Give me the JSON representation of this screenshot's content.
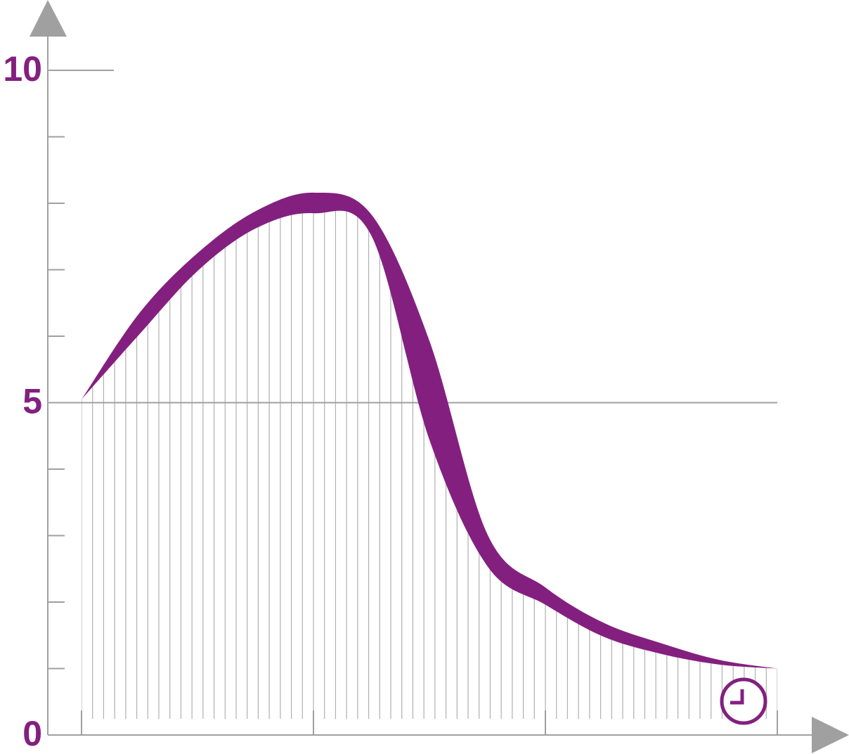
{
  "chart_data": {
    "type": "band",
    "color": "#83207f",
    "x": [
      0,
      0.25,
      0.5,
      0.75,
      1,
      1.25,
      1.5,
      1.75,
      2,
      2.25,
      2.5,
      2.75,
      3
    ],
    "series": [
      {
        "color": "#83207f",
        "values": [
          5.05,
          6.35,
          7.25,
          7.88,
          8.16,
          7.83,
          5.93,
          3.02,
          2.22,
          1.69,
          1.38,
          1.13,
          1.0
        ]
      },
      {
        "color": "#83207f",
        "values": [
          5.05,
          6.03,
          6.98,
          7.62,
          7.85,
          7.51,
          4.44,
          2.54,
          1.96,
          1.48,
          1.22,
          1.06,
          1.0
        ]
      }
    ],
    "xlim": [
      0,
      3
    ],
    "xticks": [
      0,
      1,
      2,
      3
    ],
    "ylim": [
      0,
      10
    ],
    "yticks": [
      0,
      5,
      10
    ],
    "yminor": [
      1,
      2,
      3,
      4,
      6,
      7,
      8,
      9
    ]
  }
}
